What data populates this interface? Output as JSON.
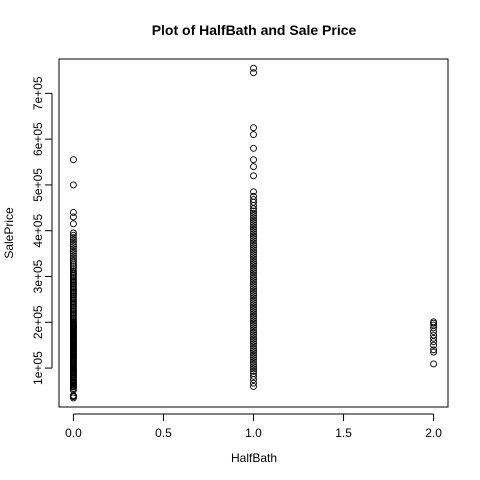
{
  "chart_data": {
    "type": "scatter",
    "title": "Plot of HalfBath and Sale Price",
    "xlabel": "HalfBath",
    "ylabel": "SalePrice",
    "xlim": [
      -0.08,
      2.08
    ],
    "ylim": [
      15000,
      775000
    ],
    "x_ticks": [
      0.0,
      0.5,
      1.0,
      1.5,
      2.0
    ],
    "x_tick_labels": [
      "0.0",
      "0.5",
      "1.0",
      "1.5",
      "2.0"
    ],
    "y_ticks": [
      100000,
      200000,
      300000,
      400000,
      500000,
      600000,
      700000
    ],
    "y_tick_labels": [
      "1e+05",
      "2e+05",
      "3e+05",
      "4e+05",
      "5e+05",
      "6e+05",
      "7e+05"
    ],
    "grid": false,
    "marker": "open-circle",
    "series": [
      {
        "x_value": 0,
        "values": [
          34900,
          37900,
          39300,
          40000,
          52000,
          55000,
          58500,
          60000,
          62500,
          64500,
          66500,
          68400,
          70000,
          72500,
          75000,
          78000,
          80000,
          82000,
          85000,
          87000,
          89500,
          91000,
          93000,
          95000,
          97000,
          99000,
          100000,
          102000,
          105000,
          107500,
          110000,
          112000,
          114500,
          116000,
          118000,
          120000,
          122000,
          124000,
          125000,
          127000,
          129000,
          130000,
          132000,
          134000,
          135000,
          137000,
          139000,
          140000,
          142000,
          144000,
          145000,
          147000,
          149000,
          150000,
          152000,
          154000,
          155000,
          157000,
          159000,
          160000,
          162000,
          164000,
          165000,
          167000,
          169000,
          170000,
          172000,
          174000,
          175000,
          177000,
          179000,
          180000,
          182000,
          184000,
          185000,
          187000,
          189000,
          190000,
          192000,
          194000,
          195000,
          197000,
          199000,
          200000,
          203000,
          206000,
          209000,
          212000,
          215000,
          218000,
          221000,
          224000,
          227000,
          230000,
          233000,
          236000,
          239000,
          242000,
          245000,
          248000,
          251000,
          254000,
          257000,
          260000,
          263000,
          266000,
          269000,
          272000,
          275000,
          278000,
          281000,
          284000,
          287000,
          290000,
          293000,
          296000,
          299000,
          302000,
          305000,
          308000,
          311000,
          315000,
          319000,
          323000,
          327000,
          331000,
          335000,
          340000,
          345000,
          350000,
          355000,
          360000,
          365000,
          370000,
          375000,
          380000,
          385000,
          390000,
          395000,
          415000,
          430000,
          440000,
          500000,
          555000
        ]
      },
      {
        "x_value": 1,
        "values": [
          60000,
          67000,
          75000,
          82000,
          88000,
          93000,
          98000,
          103000,
          108000,
          113000,
          118000,
          123000,
          128000,
          133000,
          138000,
          143000,
          148000,
          153000,
          158000,
          163000,
          168000,
          173000,
          178000,
          183000,
          188000,
          193000,
          198000,
          203000,
          208000,
          213000,
          218000,
          223000,
          228000,
          233000,
          238000,
          243000,
          248000,
          253000,
          258000,
          263000,
          268000,
          273000,
          278000,
          283000,
          288000,
          293000,
          298000,
          303000,
          308000,
          313000,
          318000,
          323000,
          328000,
          333000,
          338000,
          343000,
          348000,
          353000,
          358000,
          363000,
          368000,
          373000,
          378000,
          383000,
          388000,
          393000,
          398000,
          403000,
          408000,
          413000,
          418000,
          423000,
          428000,
          433000,
          438000,
          443000,
          448000,
          455000,
          462000,
          468000,
          475000,
          485000,
          520000,
          540000,
          555000,
          580000,
          610000,
          625000,
          745000,
          755000
        ]
      },
      {
        "x_value": 2,
        "values": [
          109000,
          135000,
          140000,
          150000,
          158000,
          165000,
          172000,
          180000,
          188000,
          194000,
          198000,
          201000
        ]
      }
    ]
  }
}
